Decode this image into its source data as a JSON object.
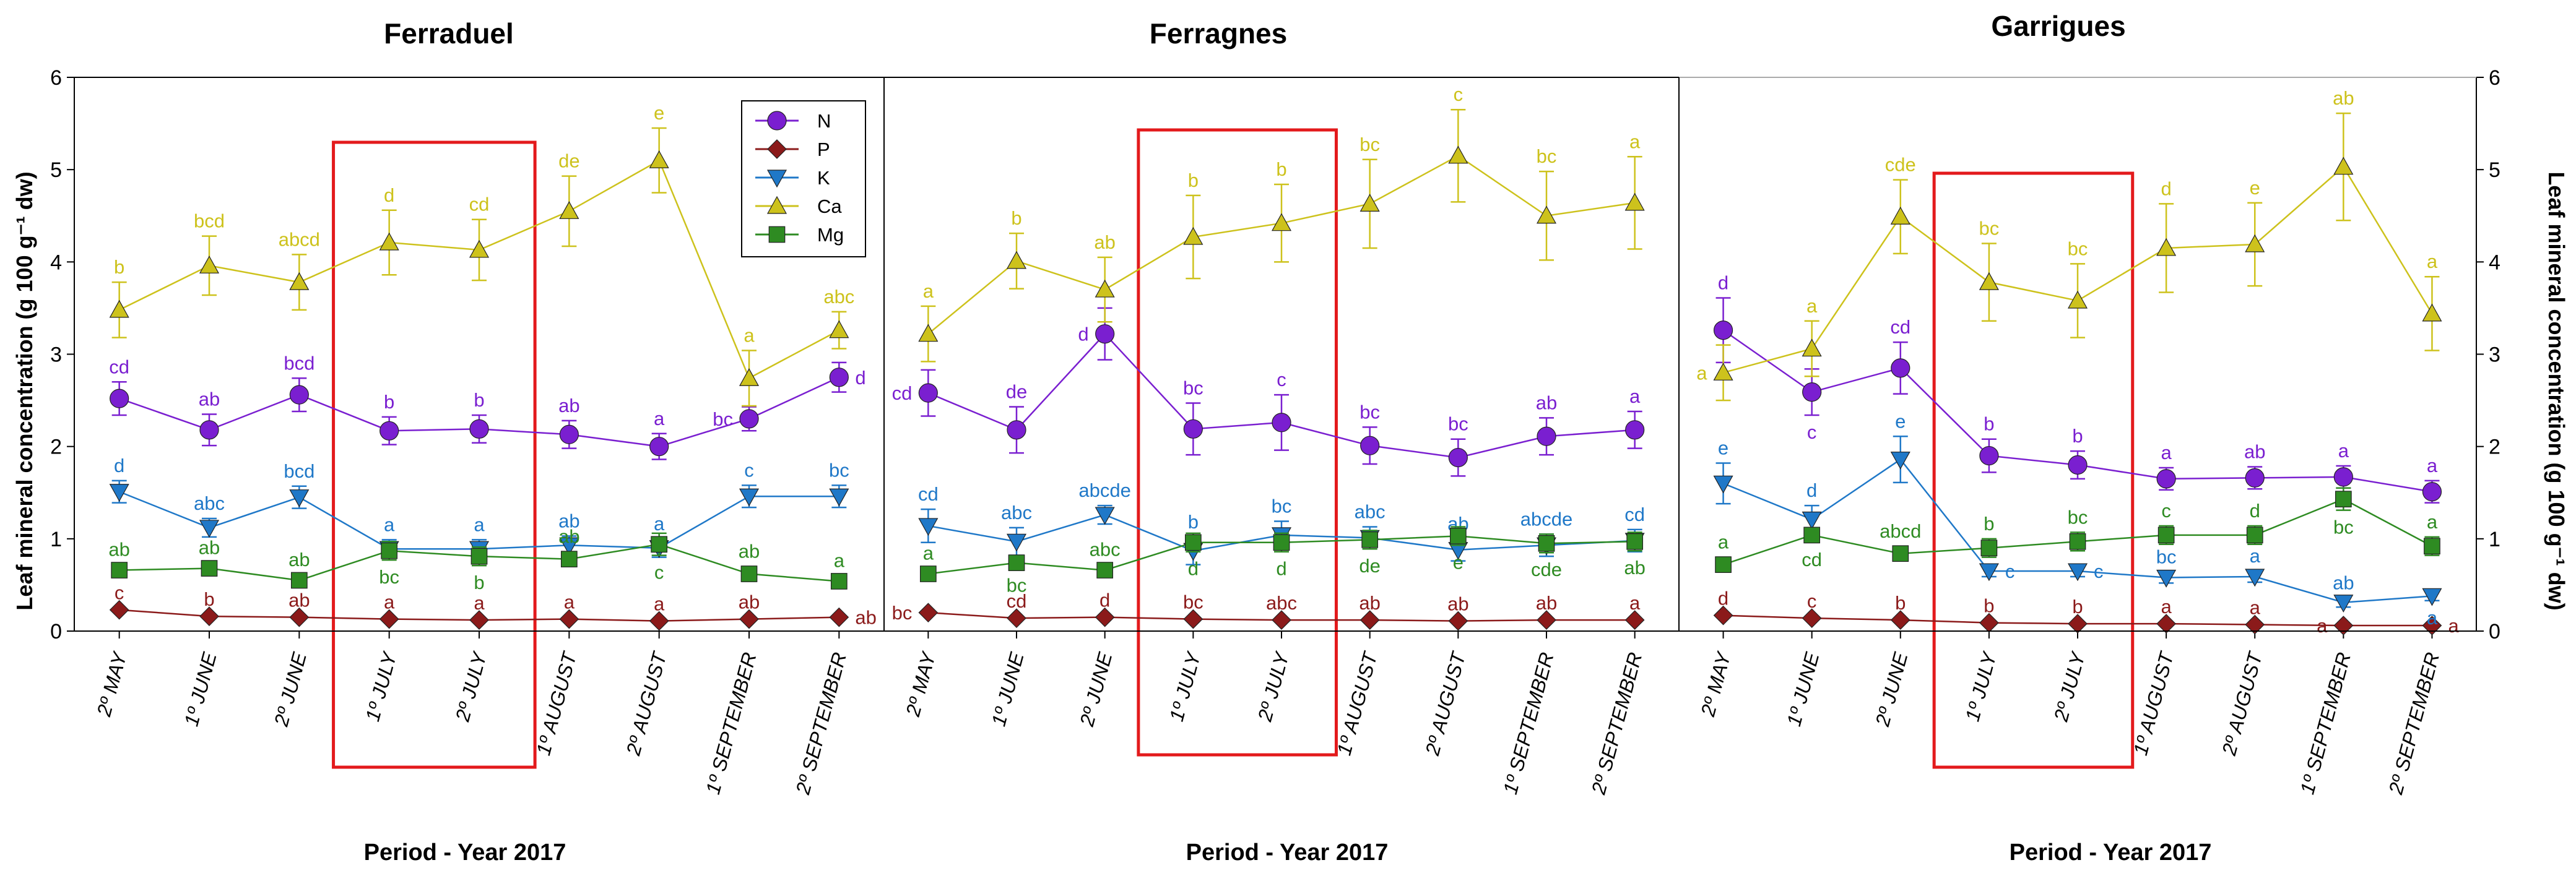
{
  "xlabel": "Period - Year 2017",
  "ylabel_left": "Leaf mineral concentration (g 100 g⁻¹ dw)",
  "ylabel_right": "Leaf mineral concentration (g 100 g⁻¹ dw)",
  "colors": {
    "N": "#7A1FD0",
    "P": "#8B1A1A",
    "K": "#1F78C8",
    "Ca": "#CDC21C",
    "Mg": "#2E8B22",
    "highlight": "#E31A1C"
  },
  "legend": [
    "N",
    "P",
    "K",
    "Ca",
    "Mg"
  ],
  "chart_data": [
    {
      "type": "line",
      "title": "Ferraduel",
      "ylim": [
        0,
        6
      ],
      "yticks": [
        0,
        1,
        2,
        3,
        4,
        5,
        6
      ],
      "categories": [
        "2º MAY",
        "1º JUNE",
        "2º JUNE",
        "1º JULY",
        "2º JULY",
        "1º AUGUST",
        "2º AUGUST",
        "1º SEPTEMBER",
        "2º SEPTEMBER"
      ],
      "highlight_categories": [
        "1º JULY",
        "2º JULY"
      ],
      "series": [
        {
          "name": "N",
          "values": [
            2.52,
            2.18,
            2.56,
            2.17,
            2.19,
            2.13,
            2.0,
            2.3,
            2.75
          ],
          "errors": [
            0.18,
            0.17,
            0.18,
            0.15,
            0.15,
            0.15,
            0.14,
            0.13,
            0.16
          ],
          "labels": [
            "cd",
            "ab",
            "bcd",
            "b",
            "b",
            "ab",
            "a",
            "bc",
            "d"
          ],
          "label_pos": [
            "above",
            "above",
            "above",
            "above",
            "above",
            "above",
            "above",
            "left",
            "right"
          ]
        },
        {
          "name": "P",
          "values": [
            0.23,
            0.16,
            0.15,
            0.13,
            0.12,
            0.13,
            0.11,
            0.13,
            0.15
          ],
          "errors": [
            0.02,
            0.02,
            0.02,
            0.02,
            0.02,
            0.02,
            0.02,
            0.02,
            0.02
          ],
          "labels": [
            "c",
            "b",
            "ab",
            "a",
            "a",
            "a",
            "a",
            "ab",
            "ab"
          ],
          "label_pos": [
            "above",
            "above",
            "above",
            "above",
            "above",
            "above",
            "above",
            "above",
            "right"
          ]
        },
        {
          "name": "K",
          "values": [
            1.51,
            1.12,
            1.45,
            0.89,
            0.89,
            0.93,
            0.9,
            1.46,
            1.46
          ],
          "errors": [
            0.12,
            0.1,
            0.12,
            0.1,
            0.1,
            0.1,
            0.1,
            0.12,
            0.12
          ],
          "labels": [
            "d",
            "abc",
            "bcd",
            "a",
            "a",
            "ab",
            "a",
            "c",
            "bc"
          ],
          "label_pos": [
            "above",
            "above",
            "above",
            "above",
            "above",
            "above",
            "above",
            "above",
            "above"
          ]
        },
        {
          "name": "Ca",
          "values": [
            3.48,
            3.96,
            3.78,
            4.21,
            4.13,
            4.55,
            5.1,
            2.74,
            3.26
          ],
          "errors": [
            0.3,
            0.32,
            0.3,
            0.35,
            0.33,
            0.38,
            0.35,
            0.3,
            0.2
          ],
          "labels": [
            "b",
            "bcd",
            "abcd",
            "d",
            "cd",
            "de",
            "e",
            "a",
            "abc"
          ],
          "label_pos": [
            "above",
            "above",
            "above",
            "above",
            "above",
            "above",
            "above",
            "above",
            "above"
          ]
        },
        {
          "name": "Mg",
          "values": [
            0.66,
            0.68,
            0.55,
            0.87,
            0.81,
            0.78,
            0.94,
            0.62,
            0.54
          ],
          "errors": [
            0.06,
            0.06,
            0.06,
            0.1,
            0.1,
            0.08,
            0.12,
            0.08,
            0.06
          ],
          "labels": [
            "ab",
            "ab",
            "ab",
            "bc",
            "b",
            "ab",
            "c",
            "ab",
            "a"
          ],
          "label_pos": [
            "above",
            "above",
            "above",
            "below",
            "below",
            "above",
            "below",
            "above",
            "above"
          ]
        }
      ]
    },
    {
      "type": "line",
      "title": "Ferragnes",
      "ylim": [
        0,
        6
      ],
      "yticks": [
        0,
        1,
        2,
        3,
        4,
        5,
        6
      ],
      "categories": [
        "2º MAY",
        "1º JUNE",
        "2º JUNE",
        "1º JULY",
        "2º JULY",
        "1º AUGUST",
        "2º AUGUST",
        "1º SEPTEMBER",
        "2º SEPTEMBER"
      ],
      "highlight_categories": [
        "1º JULY",
        "2º JULY"
      ],
      "series": [
        {
          "name": "N",
          "values": [
            2.58,
            2.18,
            3.22,
            2.19,
            2.26,
            2.01,
            1.88,
            2.11,
            2.18
          ],
          "errors": [
            0.25,
            0.25,
            0.28,
            0.28,
            0.3,
            0.2,
            0.2,
            0.2,
            0.2
          ],
          "labels": [
            "cd",
            "de",
            "d",
            "bc",
            "c",
            "bc",
            "bc",
            "ab",
            "a"
          ],
          "label_pos": [
            "left",
            "above",
            "left",
            "above",
            "above",
            "above",
            "above",
            "above",
            "above"
          ]
        },
        {
          "name": "P",
          "values": [
            0.2,
            0.14,
            0.15,
            0.13,
            0.12,
            0.12,
            0.11,
            0.12,
            0.12
          ],
          "errors": [
            0.02,
            0.02,
            0.02,
            0.02,
            0.02,
            0.02,
            0.02,
            0.02,
            0.02
          ],
          "labels": [
            "bc",
            "cd",
            "d",
            "bc",
            "abc",
            "ab",
            "ab",
            "ab",
            "a"
          ],
          "label_pos": [
            "left",
            "above",
            "above",
            "above",
            "above",
            "above",
            "above",
            "above",
            "above"
          ]
        },
        {
          "name": "K",
          "values": [
            1.14,
            0.97,
            1.26,
            0.87,
            1.04,
            1.01,
            0.88,
            0.93,
            0.98
          ],
          "errors": [
            0.18,
            0.15,
            0.1,
            0.15,
            0.15,
            0.12,
            0.12,
            0.12,
            0.12
          ],
          "labels": [
            "cd",
            "abc",
            "abcde",
            "b",
            "bc",
            "abc",
            "ab",
            "abcde",
            "cd"
          ],
          "label_pos": [
            "above",
            "above",
            "above",
            "above",
            "above",
            "above",
            "above",
            "above",
            "above"
          ]
        },
        {
          "name": "Ca",
          "values": [
            3.22,
            4.01,
            3.7,
            4.27,
            4.42,
            4.63,
            5.15,
            4.5,
            4.64
          ],
          "errors": [
            0.3,
            0.3,
            0.35,
            0.45,
            0.42,
            0.48,
            0.5,
            0.48,
            0.5
          ],
          "labels": [
            "a",
            "b",
            "ab",
            "b",
            "b",
            "bc",
            "c",
            "bc",
            "a"
          ],
          "label_pos": [
            "above",
            "above",
            "above",
            "above",
            "above",
            "above",
            "above",
            "above",
            "above"
          ]
        },
        {
          "name": "Mg",
          "values": [
            0.62,
            0.74,
            0.66,
            0.96,
            0.96,
            0.99,
            1.03,
            0.95,
            0.97
          ],
          "errors": [
            0.06,
            0.06,
            0.06,
            0.1,
            0.1,
            0.1,
            0.1,
            0.1,
            0.1
          ],
          "labels": [
            "a",
            "bc",
            "abc",
            "d",
            "d",
            "de",
            "e",
            "cde",
            "ab"
          ],
          "label_pos": [
            "above",
            "below",
            "above",
            "below",
            "below",
            "below",
            "below",
            "below",
            "below"
          ]
        }
      ]
    },
    {
      "type": "line",
      "title": "Garrigues",
      "ylim": [
        0,
        6
      ],
      "yticks": [
        0,
        1,
        2,
        3,
        4,
        5,
        6
      ],
      "categories": [
        "2º MAY",
        "1º JUNE",
        "2º JUNE",
        "1º JULY",
        "2º JULY",
        "1º AUGUST",
        "2º AUGUST",
        "1º SEPTEMBER",
        "2º SEPTEMBER"
      ],
      "highlight_categories": [
        "1º JULY",
        "2º JULY"
      ],
      "series": [
        {
          "name": "N",
          "values": [
            3.26,
            2.59,
            2.85,
            1.9,
            1.8,
            1.65,
            1.66,
            1.67,
            1.51
          ],
          "errors": [
            0.35,
            0.25,
            0.28,
            0.18,
            0.15,
            0.12,
            0.12,
            0.12,
            0.12
          ],
          "labels": [
            "d",
            "c",
            "cd",
            "b",
            "b",
            "a",
            "ab",
            "a",
            "a"
          ],
          "label_pos": [
            "above",
            "below",
            "above",
            "above",
            "above",
            "above",
            "above",
            "above",
            "above"
          ]
        },
        {
          "name": "P",
          "values": [
            0.17,
            0.14,
            0.12,
            0.09,
            0.08,
            0.08,
            0.07,
            0.06,
            0.06
          ],
          "errors": [
            0.02,
            0.02,
            0.02,
            0.02,
            0.02,
            0.02,
            0.02,
            0.02,
            0.02
          ],
          "labels": [
            "d",
            "c",
            "b",
            "b",
            "b",
            "a",
            "a",
            "a",
            "a"
          ],
          "label_pos": [
            "above",
            "above",
            "above",
            "above",
            "above",
            "above",
            "above",
            "left",
            "right"
          ]
        },
        {
          "name": "K",
          "values": [
            1.6,
            1.21,
            1.86,
            0.65,
            0.65,
            0.58,
            0.59,
            0.31,
            0.38
          ],
          "errors": [
            0.22,
            0.15,
            0.25,
            0.06,
            0.06,
            0.06,
            0.06,
            0.05,
            0.05
          ],
          "labels": [
            "e",
            "d",
            "e",
            "c",
            "c",
            "bc",
            "a",
            "ab",
            "a"
          ],
          "label_pos": [
            "above",
            "above",
            "above",
            "right",
            "right",
            "above",
            "above",
            "above",
            "below"
          ]
        },
        {
          "name": "Ca",
          "values": [
            2.8,
            3.06,
            4.49,
            3.78,
            3.58,
            4.15,
            4.19,
            5.03,
            3.44
          ],
          "errors": [
            0.3,
            0.3,
            0.4,
            0.42,
            0.4,
            0.48,
            0.45,
            0.58,
            0.4
          ],
          "labels": [
            "a",
            "a",
            "cde",
            "bc",
            "bc",
            "d",
            "e",
            "ab",
            "a"
          ],
          "label_pos": [
            "left",
            "above",
            "above",
            "above",
            "above",
            "above",
            "above",
            "above",
            "above"
          ]
        },
        {
          "name": "Mg",
          "values": [
            0.72,
            1.04,
            0.84,
            0.9,
            0.97,
            1.04,
            1.04,
            1.43,
            0.92
          ],
          "errors": [
            0.08,
            0.08,
            0.08,
            0.1,
            0.1,
            0.1,
            0.1,
            0.12,
            0.1
          ],
          "labels": [
            "a",
            "cd",
            "abcd",
            "b",
            "bc",
            "c",
            "d",
            "bc",
            "a"
          ],
          "label_pos": [
            "above",
            "below",
            "above",
            "above",
            "above",
            "above",
            "above",
            "below",
            "above"
          ]
        }
      ]
    }
  ]
}
